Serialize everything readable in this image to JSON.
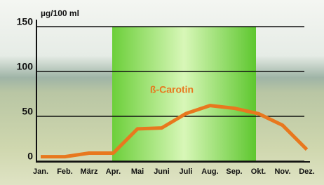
{
  "chart_data": {
    "type": "line",
    "y_label": "µg/100 ml",
    "annotation": "ß-Carotin",
    "categories": [
      "Jan.",
      "Feb.",
      "März",
      "Apr.",
      "Mai",
      "Juni",
      "Juli",
      "Aug.",
      "Sep.",
      "Okt.",
      "Nov.",
      "Dez."
    ],
    "series": [
      {
        "name": "ß-Carotin",
        "color": "#e8781e",
        "values": [
          5,
          5,
          9,
          9,
          36,
          37,
          53,
          62,
          59,
          53,
          40,
          13
        ]
      }
    ],
    "ylim": [
      0,
      150
    ],
    "yticks": [
      0,
      50,
      100,
      150
    ],
    "grid": true
  }
}
